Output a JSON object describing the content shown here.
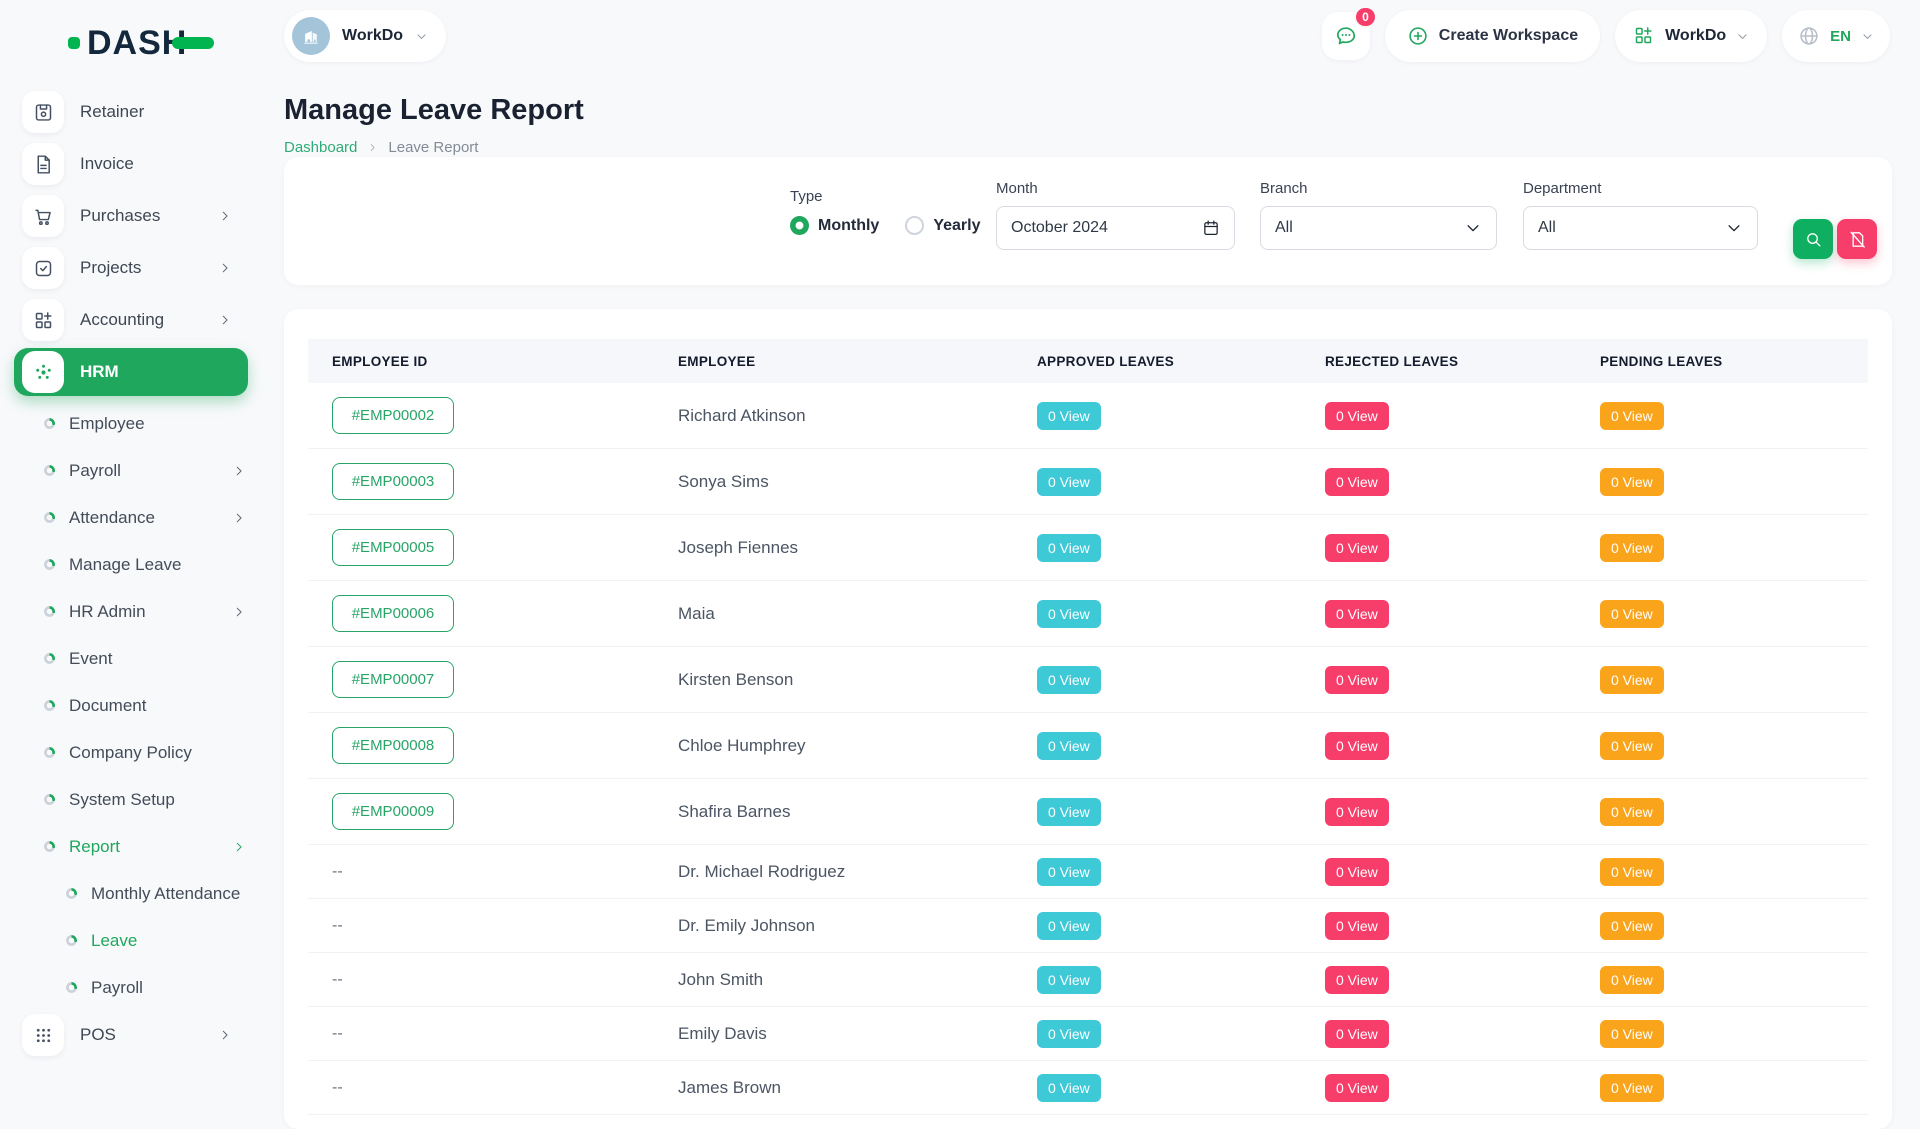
{
  "brand": {
    "name": "DASH"
  },
  "topbar": {
    "workspace": {
      "label": "WorkDo"
    },
    "chat": {
      "badge": "0"
    },
    "create_workspace_label": "Create Workspace",
    "workspace_switcher_label": "WorkDo",
    "language": {
      "code": "EN"
    }
  },
  "page": {
    "title": "Manage Leave Report",
    "breadcrumb": [
      "Dashboard",
      "Leave Report"
    ]
  },
  "sidebar": {
    "items": [
      {
        "label": "Retainer",
        "type": "main",
        "icon": "save"
      },
      {
        "label": "Invoice",
        "type": "main",
        "icon": "file-invoice"
      },
      {
        "label": "Purchases",
        "type": "main",
        "icon": "cart",
        "arrow": "chevron-right"
      },
      {
        "label": "Projects",
        "type": "main",
        "icon": "check-square",
        "arrow": "chevron-right"
      },
      {
        "label": "Accounting",
        "type": "main",
        "icon": "grid-plus",
        "arrow": "chevron-right"
      },
      {
        "label": "HRM",
        "type": "main",
        "icon": "hub",
        "arrow": "chevron-down",
        "active": true
      },
      {
        "label": "Employee",
        "type": "sub",
        "bullet": true
      },
      {
        "label": "Payroll",
        "type": "sub",
        "bullet": true,
        "arrow": "chevron-right"
      },
      {
        "label": "Attendance",
        "type": "sub",
        "bullet": true,
        "arrow": "chevron-right"
      },
      {
        "label": "Manage Leave",
        "type": "sub",
        "bullet": true
      },
      {
        "label": "HR Admin",
        "type": "sub",
        "bullet": true,
        "arrow": "chevron-right"
      },
      {
        "label": "Event",
        "type": "sub",
        "bullet": true
      },
      {
        "label": "Document",
        "type": "sub",
        "bullet": true
      },
      {
        "label": "Company Policy",
        "type": "sub",
        "bullet": true
      },
      {
        "label": "System Setup",
        "type": "sub",
        "bullet": true
      },
      {
        "label": "Report",
        "type": "sub",
        "bullet": true,
        "arrow": "chevron-right",
        "active": true
      },
      {
        "label": "Monthly Attendance",
        "type": "subsub",
        "bullet": true
      },
      {
        "label": "Leave",
        "type": "subsub",
        "bullet": true,
        "active": true
      },
      {
        "label": "Payroll",
        "type": "subsub",
        "bullet": true
      },
      {
        "label": "POS",
        "type": "main",
        "icon": "dots-grid",
        "arrow": "chevron-right"
      }
    ]
  },
  "filters": {
    "type": {
      "label": "Type",
      "options": [
        {
          "label": "Monthly",
          "checked": true
        },
        {
          "label": "Yearly",
          "checked": false
        }
      ]
    },
    "month": {
      "label": "Month",
      "value": "October 2024"
    },
    "branch": {
      "label": "Branch",
      "value": "All"
    },
    "department": {
      "label": "Department",
      "value": "All"
    }
  },
  "table": {
    "columns": [
      "EMPLOYEE ID",
      "EMPLOYEE",
      "APPROVED LEAVES",
      "REJECTED LEAVES",
      "PENDING LEAVES"
    ],
    "rows": [
      {
        "id": "#EMP00002",
        "name": "Richard Atkinson",
        "approved": "0 View",
        "rejected": "0 View",
        "pending": "0 View"
      },
      {
        "id": "#EMP00003",
        "name": "Sonya Sims",
        "approved": "0 View",
        "rejected": "0 View",
        "pending": "0 View"
      },
      {
        "id": "#EMP00005",
        "name": "Joseph Fiennes",
        "approved": "0 View",
        "rejected": "0 View",
        "pending": "0 View"
      },
      {
        "id": "#EMP00006",
        "name": "Maia",
        "approved": "0 View",
        "rejected": "0 View",
        "pending": "0 View"
      },
      {
        "id": "#EMP00007",
        "name": "Kirsten Benson",
        "approved": "0 View",
        "rejected": "0 View",
        "pending": "0 View"
      },
      {
        "id": "#EMP00008",
        "name": "Chloe Humphrey",
        "approved": "0 View",
        "rejected": "0 View",
        "pending": "0 View"
      },
      {
        "id": "#EMP00009",
        "name": "Shafira Barnes",
        "approved": "0 View",
        "rejected": "0 View",
        "pending": "0 View"
      },
      {
        "id": "--",
        "name": "Dr. Michael Rodriguez",
        "approved": "0 View",
        "rejected": "0 View",
        "pending": "0 View"
      },
      {
        "id": "--",
        "name": "Dr. Emily Johnson",
        "approved": "0 View",
        "rejected": "0 View",
        "pending": "0 View"
      },
      {
        "id": "--",
        "name": "John Smith",
        "approved": "0 View",
        "rejected": "0 View",
        "pending": "0 View"
      },
      {
        "id": "--",
        "name": "Emily Davis",
        "approved": "0 View",
        "rejected": "0 View",
        "pending": "0 View"
      },
      {
        "id": "--",
        "name": "James Brown",
        "approved": "0 View",
        "rejected": "0 View",
        "pending": "0 View"
      }
    ]
  },
  "colors": {
    "primary_green": "#1fa75d",
    "link_green": "#2eac77",
    "logo_green": "#00b450",
    "badge_teal": "#3ec9d6",
    "badge_pink": "#f73e6b",
    "badge_orange": "#f9a41b",
    "search_button_green": "#0faf62"
  }
}
